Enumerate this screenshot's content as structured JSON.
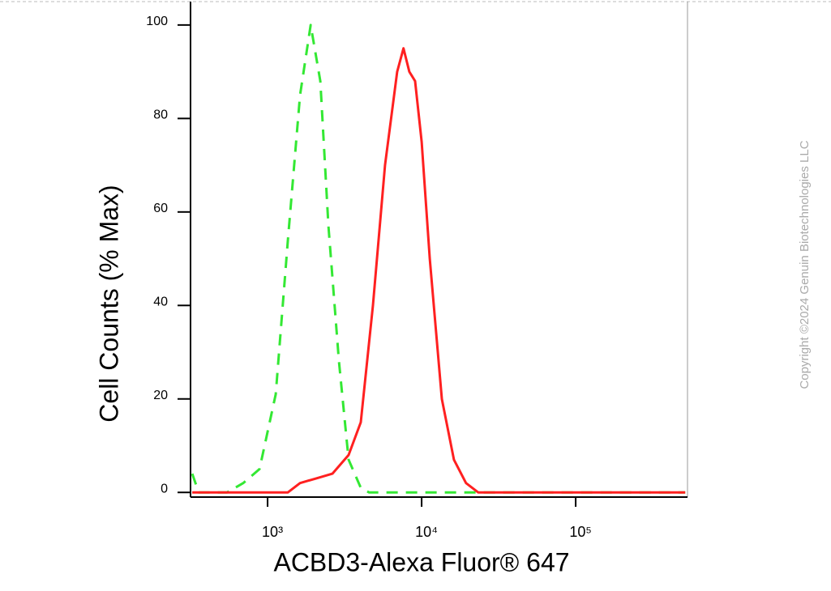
{
  "chart_data": {
    "type": "line",
    "x_label": "ACBD3-Alexa Fluor® 647",
    "y_label": "Cell Counts (% Max)",
    "annotation": "Copyright ©2024 Genuin Biotechnologies LLC",
    "xscale": "log",
    "xlim": [
      316,
      532000
    ],
    "ylim": [
      -1,
      105
    ],
    "xticks": [
      {
        "value": 1000,
        "label": "10³"
      },
      {
        "value": 10000,
        "label": "10⁴"
      },
      {
        "value": 100000,
        "label": "10⁵"
      }
    ],
    "yticks": [
      0,
      20,
      40,
      60,
      80,
      100
    ],
    "series": [
      {
        "color": "#33e833",
        "dash": true,
        "x": [
          324,
          357,
          546,
          695,
          886,
          1129,
          1354,
          1624,
          1903,
          2199,
          2483,
          2905,
          3357,
          4028,
          4548,
          514000
        ],
        "values": [
          4,
          0,
          0,
          2,
          5,
          21,
          54,
          85,
          100,
          88,
          57,
          28,
          7,
          1,
          0,
          0
        ]
      },
      {
        "color": "#ff2020",
        "dash": false,
        "x": [
          324,
          1354,
          1624,
          2070,
          2636,
          3357,
          4028,
          4829,
          5786,
          6940,
          7629,
          8317,
          9067,
          10000,
          11288,
          13520,
          16200,
          19420,
          23270,
          514000
        ],
        "values": [
          0,
          0,
          2,
          3,
          4,
          8,
          15,
          40,
          70,
          90,
          95,
          90,
          88,
          75,
          50,
          20,
          7,
          2,
          0,
          0
        ]
      }
    ]
  }
}
